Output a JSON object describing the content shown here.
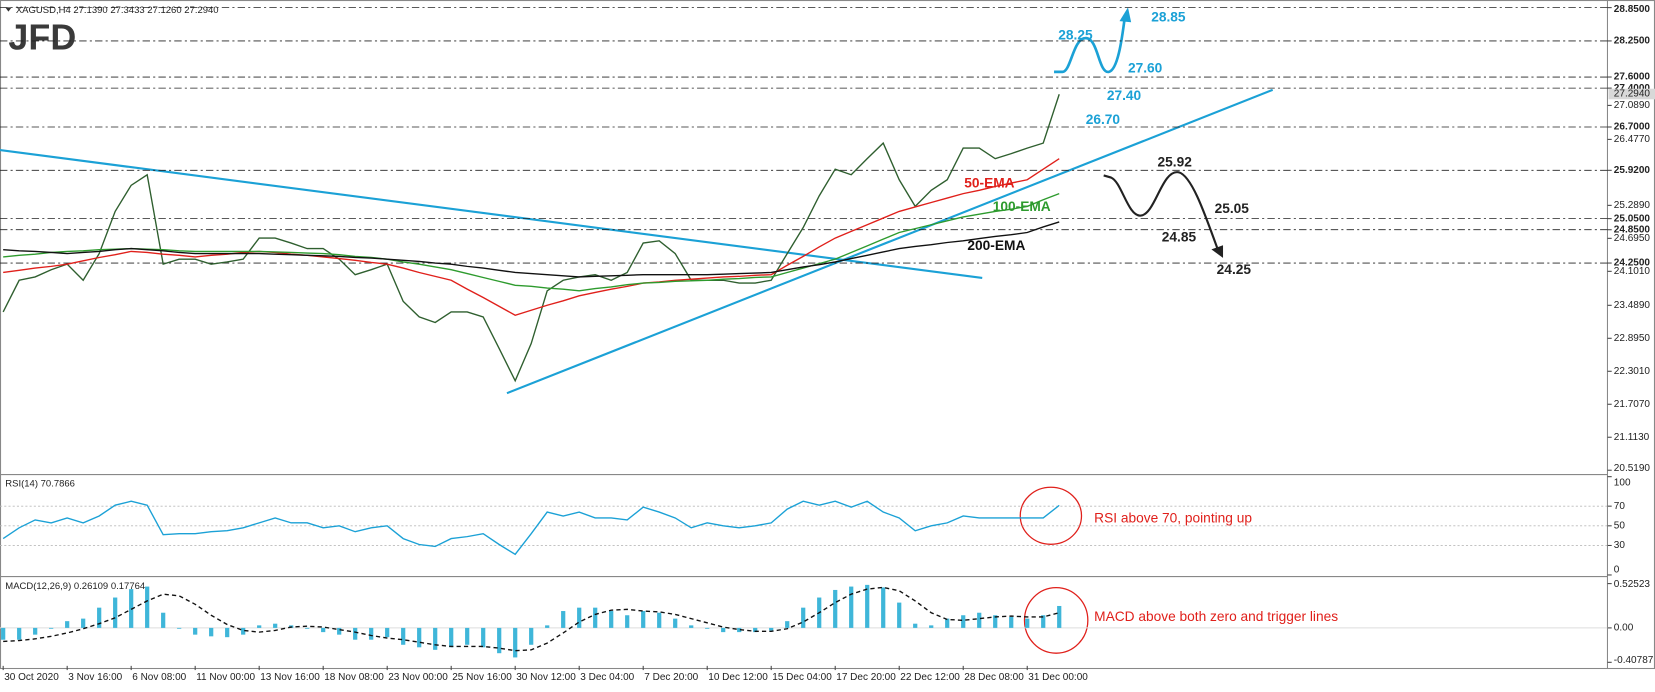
{
  "chart_data": [
    {
      "type": "line",
      "title": "XAGUSD,H4  27.1390 27.3433 27.1260 27.2940",
      "logo": "JFD",
      "categories": [
        "30 Oct 2020",
        null,
        null,
        null,
        "3 Nov 16:00",
        null,
        null,
        null,
        "6 Nov 08:00",
        null,
        null,
        null,
        "11 Nov 00:00",
        null,
        null,
        null,
        "13 Nov 16:00",
        null,
        null,
        null,
        "18 Nov 08:00",
        null,
        null,
        null,
        "23 Nov 00:00",
        null,
        null,
        null,
        "25 Nov 16:00",
        null,
        null,
        null,
        "30 Nov 12:00",
        null,
        null,
        null,
        "3 Dec 04:00",
        null,
        null,
        null,
        "7 Dec 20:00",
        null,
        null,
        null,
        "10 Dec 12:00",
        null,
        null,
        null,
        "15 Dec 04:00",
        null,
        null,
        null,
        "17 Dec 20:00",
        null,
        null,
        null,
        "22 Dec 12:00",
        null,
        null,
        null,
        "28 Dec 08:00",
        null,
        null,
        null,
        "31 Dec 00:00",
        null,
        null
      ],
      "series": [
        {
          "color": "#2f5f2f",
          "values": [
            23.37,
            23.94,
            24.0,
            24.13,
            24.23,
            23.94,
            24.42,
            25.18,
            25.65,
            25.84,
            24.23,
            24.32,
            24.32,
            24.23,
            24.27,
            24.32,
            24.7,
            24.7,
            24.61,
            24.51,
            24.51,
            24.32,
            24.04,
            24.13,
            24.23,
            23.56,
            23.28,
            23.18,
            23.37,
            23.37,
            23.28,
            22.71,
            22.13,
            22.8,
            23.75,
            23.94,
            24.0,
            24.04,
            23.94,
            24.08,
            24.61,
            24.65,
            24.42,
            23.94,
            23.94,
            23.94,
            23.89,
            23.89,
            23.94,
            24.42,
            24.89,
            25.46,
            25.94,
            25.84,
            26.13,
            26.41,
            25.75,
            25.27,
            25.56,
            25.75,
            26.32,
            26.32,
            26.13,
            26.22,
            26.32,
            26.41,
            27.29
          ]
        },
        {
          "name": "50-EMA",
          "color": "#e0201b",
          "values": [
            24.08,
            24.12,
            24.16,
            24.19,
            24.23,
            24.29,
            24.35,
            24.4,
            24.46,
            24.44,
            24.41,
            24.39,
            24.36,
            24.39,
            24.41,
            24.44,
            24.46,
            24.44,
            24.41,
            24.39,
            24.36,
            24.33,
            24.3,
            24.26,
            24.23,
            24.16,
            24.08,
            24.01,
            23.94,
            23.78,
            23.63,
            23.47,
            23.31,
            23.4,
            23.49,
            23.57,
            23.66,
            23.72,
            23.78,
            23.83,
            23.89,
            23.91,
            23.94,
            23.96,
            23.98,
            24.0,
            24.01,
            24.03,
            24.04,
            24.21,
            24.37,
            24.54,
            24.7,
            24.82,
            24.94,
            25.06,
            25.18,
            25.26,
            25.34,
            25.42,
            25.5,
            25.56,
            25.63,
            25.69,
            25.75,
            25.94,
            26.13
          ]
        },
        {
          "name": "100-EMA",
          "color": "#2e9b2e",
          "values": [
            24.36,
            24.39,
            24.41,
            24.44,
            24.46,
            24.47,
            24.49,
            24.5,
            24.51,
            24.5,
            24.49,
            24.47,
            24.46,
            24.46,
            24.46,
            24.46,
            24.46,
            24.45,
            24.44,
            24.43,
            24.42,
            24.4,
            24.37,
            24.35,
            24.32,
            24.27,
            24.23,
            24.18,
            24.13,
            24.06,
            23.99,
            23.92,
            23.85,
            23.83,
            23.8,
            23.78,
            23.75,
            23.79,
            23.82,
            23.86,
            23.89,
            23.9,
            23.92,
            23.93,
            23.94,
            23.96,
            23.97,
            23.99,
            24.0,
            24.08,
            24.16,
            24.24,
            24.32,
            24.44,
            24.56,
            24.68,
            24.8,
            24.87,
            24.94,
            25.01,
            25.08,
            25.13,
            25.18,
            25.22,
            25.27,
            25.39,
            25.5
          ]
        },
        {
          "name": "200-EMA",
          "color": "#111111",
          "values": [
            24.49,
            24.47,
            24.46,
            24.44,
            24.42,
            24.44,
            24.46,
            24.49,
            24.51,
            24.49,
            24.47,
            24.44,
            24.42,
            24.42,
            24.42,
            24.42,
            24.42,
            24.41,
            24.4,
            24.39,
            24.38,
            24.37,
            24.35,
            24.34,
            24.32,
            24.3,
            24.28,
            24.25,
            24.23,
            24.19,
            24.16,
            24.12,
            24.08,
            24.06,
            24.04,
            24.02,
            24.0,
            24.01,
            24.02,
            24.03,
            24.04,
            24.04,
            24.04,
            24.04,
            24.04,
            24.05,
            24.06,
            24.07,
            24.08,
            24.13,
            24.18,
            24.22,
            24.27,
            24.33,
            24.39,
            24.45,
            24.51,
            24.55,
            24.58,
            24.62,
            24.65,
            24.69,
            24.73,
            24.76,
            24.8,
            24.9,
            24.99
          ]
        }
      ],
      "ylim": [
        20.46,
        28.93
      ],
      "yticks": [
        {
          "value": 28.85,
          "label": "28.8500"
        },
        {
          "value": 28.25,
          "label": "28.2500"
        },
        {
          "value": 27.6,
          "label": "27.6000"
        },
        {
          "value": 27.4,
          "label": "27.4000"
        },
        {
          "value": 27.089,
          "label": "27.0890"
        },
        {
          "value": 26.7,
          "label": "26.7000"
        },
        {
          "value": 26.477,
          "label": "26.4770"
        },
        {
          "value": 25.92,
          "label": "25.9200"
        },
        {
          "value": 25.289,
          "label": "25.2890"
        },
        {
          "value": 25.05,
          "label": "25.0500"
        },
        {
          "value": 24.85,
          "label": "24.8500"
        },
        {
          "value": 24.695,
          "label": "24.6950"
        },
        {
          "value": 24.25,
          "label": "24.2500"
        },
        {
          "value": 24.101,
          "label": "24.1010"
        },
        {
          "value": 23.489,
          "label": "23.4890"
        },
        {
          "value": 22.895,
          "label": "22.8950"
        },
        {
          "value": 22.301,
          "label": "22.3010"
        },
        {
          "value": 21.707,
          "label": "21.7070"
        },
        {
          "value": 21.113,
          "label": "21.1130"
        },
        {
          "value": 20.519,
          "label": "20.5190"
        }
      ],
      "price_marker": {
        "value": 27.294,
        "label": "27.2940"
      },
      "levels": [
        28.85,
        28.25,
        27.6,
        27.4,
        26.7,
        25.92,
        25.05,
        24.85,
        24.25
      ],
      "annotations": [
        {
          "text": "28.25",
          "color": "#1ba1d6"
        },
        {
          "text": "28.85",
          "color": "#1ba1d6"
        },
        {
          "text": "27.60",
          "color": "#1ba1d6"
        },
        {
          "text": "27.40",
          "color": "#1ba1d6"
        },
        {
          "text": "26.70",
          "color": "#1ba1d6"
        },
        {
          "text": "25.92",
          "color": "#222222"
        },
        {
          "text": "25.05",
          "color": "#222222"
        },
        {
          "text": "24.85",
          "color": "#222222"
        },
        {
          "text": "24.25",
          "color": "#222222"
        }
      ]
    },
    {
      "type": "line",
      "title": "RSI(14) 70.7866",
      "series": [
        {
          "color": "#1ba1d6",
          "values": [
            37,
            48,
            56,
            53,
            58,
            53,
            60,
            71,
            75,
            71,
            41,
            42,
            42,
            44,
            45,
            48,
            53,
            58,
            53,
            53,
            48,
            50,
            44,
            48,
            50,
            37,
            31,
            29,
            37,
            39,
            42,
            31,
            21,
            42,
            64,
            60,
            64,
            58,
            58,
            56,
            69,
            64,
            58,
            48,
            53,
            50,
            48,
            50,
            53,
            67,
            75,
            71,
            75,
            69,
            75,
            64,
            58,
            45,
            50,
            53,
            60,
            58,
            58,
            58,
            58,
            58,
            70.79
          ]
        }
      ],
      "ylim": [
        0,
        100
      ],
      "yticks": [
        100,
        70,
        50,
        30,
        0
      ],
      "levels": [
        70,
        50,
        30
      ],
      "annotation": {
        "text": "RSI above 70, pointing up",
        "color": "#e0201b"
      }
    },
    {
      "type": "bar",
      "title": "MACD(12,26,9) 0.26109 0.17764",
      "series": [
        {
          "type": "bar",
          "color": "#3fb6d9",
          "values": [
            -0.14,
            -0.14,
            -0.08,
            -0.01,
            0.08,
            0.11,
            0.24,
            0.36,
            0.46,
            0.49,
            0.18,
            -0.01,
            -0.08,
            -0.1,
            -0.11,
            -0.08,
            0.03,
            0.05,
            0.03,
            -0.01,
            -0.05,
            -0.08,
            -0.14,
            -0.14,
            -0.11,
            -0.2,
            -0.23,
            -0.26,
            -0.23,
            -0.2,
            -0.23,
            -0.3,
            -0.35,
            -0.2,
            0.03,
            0.2,
            0.24,
            0.24,
            0.2,
            0.15,
            0.2,
            0.18,
            0.11,
            0.03,
            -0.01,
            -0.05,
            -0.05,
            -0.05,
            -0.03,
            0.08,
            0.24,
            0.36,
            0.45,
            0.49,
            0.51,
            0.48,
            0.3,
            0.05,
            0.03,
            0.11,
            0.15,
            0.18,
            0.15,
            0.13,
            0.11,
            0.15,
            0.26
          ]
        },
        {
          "type": "line",
          "dashed": true,
          "color": "#111111",
          "values": [
            -0.16,
            -0.15,
            -0.13,
            -0.1,
            -0.06,
            -0.01,
            0.05,
            0.12,
            0.22,
            0.32,
            0.4,
            0.38,
            0.28,
            0.15,
            0.04,
            -0.03,
            -0.05,
            -0.03,
            0.01,
            0.02,
            0.01,
            -0.02,
            -0.05,
            -0.09,
            -0.12,
            -0.14,
            -0.17,
            -0.2,
            -0.22,
            -0.22,
            -0.22,
            -0.24,
            -0.27,
            -0.26,
            -0.18,
            -0.06,
            0.07,
            0.16,
            0.21,
            0.22,
            0.2,
            0.19,
            0.16,
            0.11,
            0.06,
            0.01,
            -0.02,
            -0.04,
            -0.04,
            -0.01,
            0.07,
            0.18,
            0.3,
            0.4,
            0.46,
            0.48,
            0.44,
            0.32,
            0.18,
            0.1,
            0.09,
            0.11,
            0.13,
            0.14,
            0.13,
            0.13,
            0.18
          ]
        }
      ],
      "ylim": [
        -0.45,
        0.59
      ],
      "yticks": [
        0.52523,
        {
          "value": 0,
          "label": "0.00"
        },
        -0.40787
      ],
      "annotation": {
        "text": "MACD above both zero and trigger lines",
        "color": "#e0201b"
      }
    }
  ]
}
